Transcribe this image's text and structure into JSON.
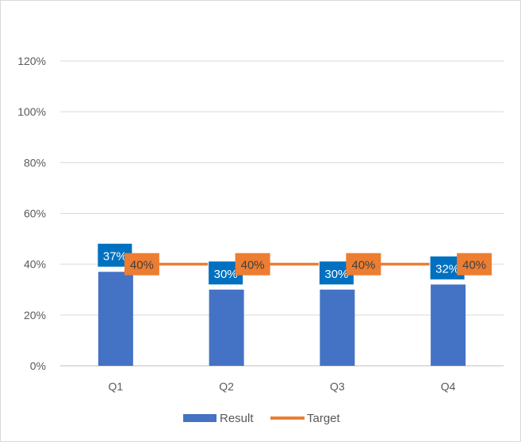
{
  "chart_data": {
    "type": "bar",
    "categories": [
      "Q1",
      "Q2",
      "Q3",
      "Q4"
    ],
    "series": [
      {
        "name": "Result",
        "kind": "bar",
        "values": [
          0.37,
          0.3,
          0.3,
          0.32
        ],
        "labels": [
          "37%",
          "30%",
          "30%",
          "32%"
        ],
        "color": "#4472C4",
        "label_bg": "#0070C0"
      },
      {
        "name": "Target",
        "kind": "line",
        "values": [
          0.4,
          0.4,
          0.4,
          0.4
        ],
        "labels": [
          "40%",
          "40%",
          "40%",
          "40%"
        ],
        "color": "#ED7D31",
        "label_bg": "#ED7D31"
      }
    ],
    "ylim": [
      0,
      1.2
    ],
    "yticks": [
      "0%",
      "20%",
      "40%",
      "60%",
      "80%",
      "100%",
      "120%"
    ],
    "grid": true,
    "legend_position": "bottom"
  }
}
